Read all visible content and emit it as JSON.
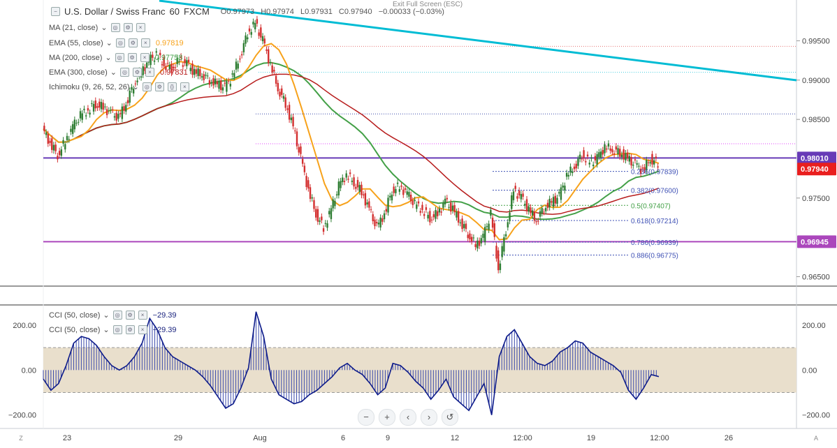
{
  "header": {
    "symbol": "U.S. Dollar / Swiss Franc",
    "interval": "60",
    "source": "FXCM",
    "ohlc": {
      "o": "O0.97973",
      "h": "H0.97974",
      "l": "L0.97931",
      "c": "C0.97940",
      "chg": "−0.00033 (−0.03%)"
    },
    "fullscreen_hint": "Exit Full Screen (ESC)"
  },
  "indicators": [
    {
      "name": "MA (21, close)",
      "value": "",
      "color": "#2962ff"
    },
    {
      "name": "EMA (55, close)",
      "value": "0.97819",
      "color": "#f7a21b"
    },
    {
      "name": "MA (200, close)",
      "value": "0.97758",
      "color": "#43a047"
    },
    {
      "name": "EMA (300, close)",
      "value": "0.97831",
      "color": "#b71c1c"
    },
    {
      "name": "Ichimoku (9, 26, 52, 26)",
      "value": "",
      "color": "#888888"
    }
  ],
  "cci_legends": [
    {
      "name": "CCI (50, close)",
      "value": "−29.39"
    },
    {
      "name": "CCI (50, close)",
      "value": "−29.39"
    }
  ],
  "price_axis": {
    "ticks": [
      "0.99500",
      "0.99000",
      "0.98500",
      "0.97500",
      "0.96500"
    ]
  },
  "price_tags": [
    {
      "label": "0.98010",
      "color": "#673ab7",
      "text_color": "#ffffff"
    },
    {
      "label": "0.97940",
      "color": "#e91e1e",
      "text_color": "#ffffff"
    },
    {
      "label": "0.96945",
      "color": "#ab47bc",
      "text_color": "#ffffff"
    }
  ],
  "fib_levels": [
    {
      "label": "0.236(0.97839)",
      "color": "#3f51b5"
    },
    {
      "label": "0.382(0.97600)",
      "color": "#3f51b5"
    },
    {
      "label": "0.5(0.97407)",
      "color": "#43a047"
    },
    {
      "label": "0.618(0.97214)",
      "color": "#3f51b5"
    },
    {
      "label": "0.786(0.96939)",
      "color": "#3f51b5"
    },
    {
      "label": "0.886(0.96775)",
      "color": "#3f51b5"
    }
  ],
  "cci_axis": {
    "ticks": [
      "200.00",
      "0.00",
      "−200.00"
    ]
  },
  "time_axis": {
    "labels": [
      "23",
      "29",
      "Aug",
      "6",
      "9",
      "12",
      "12:00",
      "19",
      "12:00",
      "26"
    ]
  },
  "corner_labels": {
    "left": "Z",
    "right": "A"
  },
  "zoom_controls": [
    "−",
    "+",
    "‹",
    "›",
    "↺"
  ],
  "chart_data": {
    "type": "candlestick",
    "price_range": [
      0.9638,
      0.9993
    ],
    "horizontal_levels": [
      0.9801,
      0.96945
    ],
    "cci_range": [
      -260,
      290
    ],
    "cci_band": [
      -100,
      100
    ],
    "price_path": [
      0.9838,
      0.982,
      0.9805,
      0.9822,
      0.984,
      0.9855,
      0.9862,
      0.987,
      0.9865,
      0.9858,
      0.9852,
      0.987,
      0.9895,
      0.991,
      0.9925,
      0.9932,
      0.992,
      0.9915,
      0.9925,
      0.992,
      0.991,
      0.9908,
      0.99,
      0.9895,
      0.989,
      0.9905,
      0.993,
      0.996,
      0.9972,
      0.995,
      0.992,
      0.989,
      0.987,
      0.984,
      0.98,
      0.976,
      0.973,
      0.9712,
      0.9735,
      0.9765,
      0.978,
      0.977,
      0.9758,
      0.9735,
      0.9712,
      0.973,
      0.976,
      0.9765,
      0.9755,
      0.9742,
      0.9735,
      0.9725,
      0.973,
      0.9745,
      0.9735,
      0.972,
      0.9705,
      0.969,
      0.97,
      0.973,
      0.966,
      0.971,
      0.976,
      0.975,
      0.9735,
      0.9722,
      0.9738,
      0.9745,
      0.9752,
      0.9778,
      0.979,
      0.9805,
      0.9795,
      0.98,
      0.9815,
      0.9812,
      0.9808,
      0.98,
      0.9792,
      0.9785,
      0.98,
      0.9794
    ],
    "cci_path": [
      -40,
      -90,
      -60,
      20,
      120,
      150,
      140,
      110,
      60,
      20,
      0,
      20,
      60,
      120,
      230,
      180,
      100,
      60,
      40,
      20,
      0,
      -30,
      -70,
      -120,
      -170,
      -150,
      -80,
      10,
      260,
      150,
      -40,
      -110,
      -130,
      -150,
      -140,
      -110,
      -90,
      -60,
      -30,
      10,
      30,
      0,
      -20,
      -60,
      -110,
      -80,
      30,
      20,
      -10,
      -50,
      -80,
      -130,
      -90,
      -40,
      -120,
      -150,
      -180,
      -120,
      -60,
      -200,
      60,
      150,
      180,
      120,
      60,
      30,
      20,
      40,
      80,
      100,
      130,
      120,
      80,
      60,
      40,
      20,
      -10,
      -90,
      -130,
      -80,
      -20,
      -29
    ]
  }
}
